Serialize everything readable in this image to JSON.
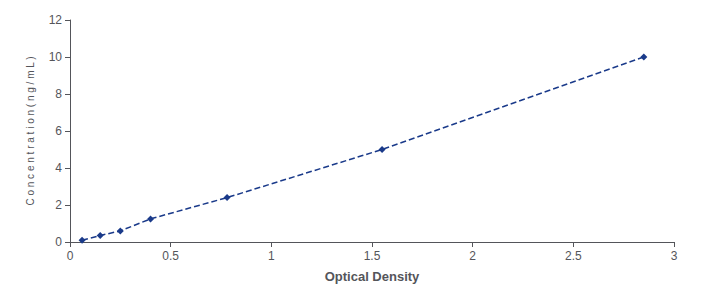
{
  "chart_data": {
    "type": "line",
    "x": [
      0.06,
      0.15,
      0.25,
      0.4,
      0.78,
      1.55,
      2.85
    ],
    "values": [
      0.1,
      0.35,
      0.6,
      1.25,
      2.4,
      5.0,
      10.0
    ],
    "xlabel": "Optical Density",
    "ylabel": "C o n c e n t r a t i o n ( n g / m L )",
    "xlim": [
      0,
      3.0
    ],
    "ylim": [
      0,
      12
    ],
    "xticks": [
      0,
      0.5,
      1,
      1.5,
      2,
      2.5,
      3
    ],
    "yticks": [
      0,
      2,
      4,
      6,
      8,
      10,
      12
    ],
    "color": "#1a3a8a",
    "marker": "diamond",
    "line_style": "dashed",
    "grid": false
  }
}
